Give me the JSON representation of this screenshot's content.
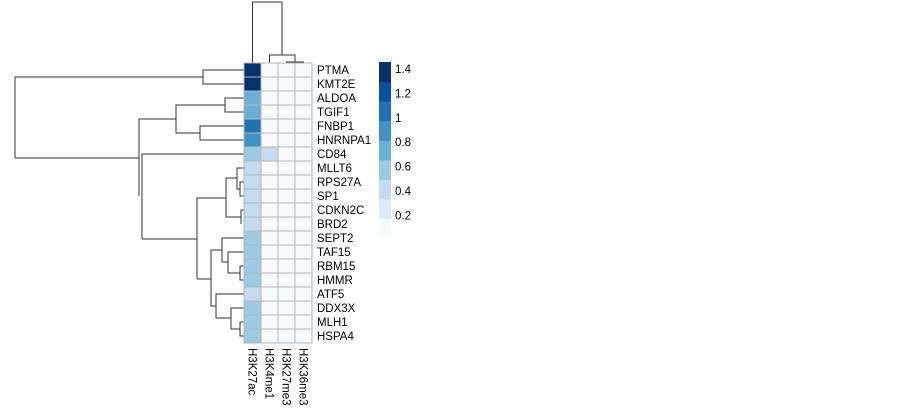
{
  "chart_data": {
    "type": "heatmap",
    "title": "",
    "rows": [
      "PTMA",
      "KMT2E",
      "ALDOA",
      "TGIF1",
      "FNBP1",
      "HNRNPA1",
      "CD84",
      "MLLT6",
      "RPS27A",
      "SP1",
      "CDKN2C",
      "BRD2",
      "SEPT2",
      "TAF15",
      "RBM15",
      "HMMR",
      "ATF5",
      "DDX3X",
      "MLH1",
      "HSPA4"
    ],
    "columns": [
      "H3K27ac",
      "H3K4me1",
      "H3K27me3",
      "H3K36me3"
    ],
    "values": [
      [
        1.4,
        0,
        0,
        0
      ],
      [
        1.4,
        0,
        0,
        0
      ],
      [
        0.7,
        0,
        0,
        0
      ],
      [
        0.7,
        0,
        0,
        0
      ],
      [
        1.1,
        0,
        0,
        0
      ],
      [
        0.9,
        0,
        0,
        0
      ],
      [
        0.55,
        0.35,
        0,
        0
      ],
      [
        0.35,
        0,
        0,
        0
      ],
      [
        0.35,
        0,
        0,
        0
      ],
      [
        0.35,
        0,
        0,
        0
      ],
      [
        0.35,
        0,
        0,
        0
      ],
      [
        0.35,
        0,
        0,
        0
      ],
      [
        0.55,
        0,
        0,
        0
      ],
      [
        0.55,
        0,
        0,
        0
      ],
      [
        0.55,
        0,
        0,
        0
      ],
      [
        0.55,
        0,
        0,
        0
      ],
      [
        0.35,
        0,
        0,
        0
      ],
      [
        0.55,
        0,
        0,
        0
      ],
      [
        0.55,
        0,
        0,
        0
      ],
      [
        0.55,
        0,
        0,
        0
      ]
    ],
    "legend": {
      "ticks": [
        "1.4",
        "1.2",
        "1",
        "0.8",
        "0.6",
        "0.4",
        "0.2"
      ],
      "tick_values": [
        1.4,
        1.2,
        1,
        0.8,
        0.6,
        0.4,
        0.2
      ],
      "range": [
        0,
        1.44
      ],
      "colors": [
        "#F7FBFF",
        "#DEEBF7",
        "#C6DBEF",
        "#9ECAE1",
        "#6BAED6",
        "#4292C6",
        "#2171B5",
        "#08519C",
        "#08306B"
      ],
      "placement": "right"
    },
    "row_dendrogram": true,
    "column_dendrogram": true
  }
}
